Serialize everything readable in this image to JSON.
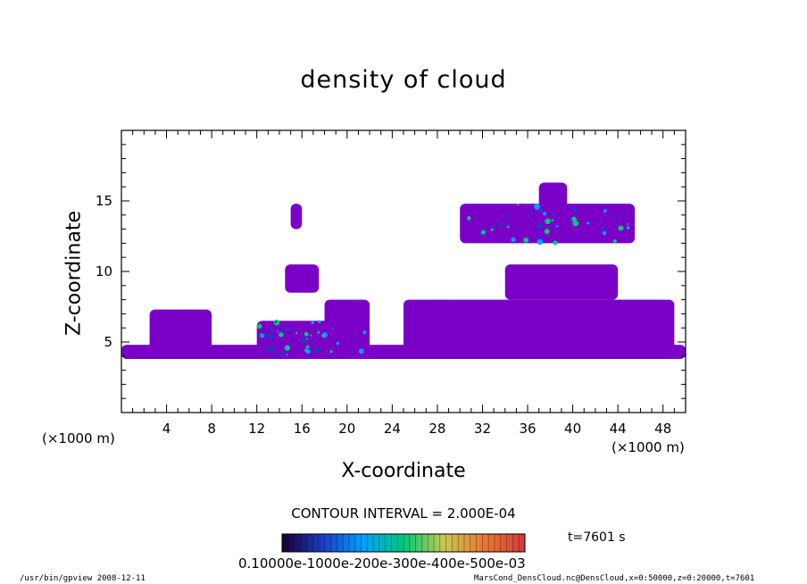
{
  "chart_data": {
    "type": "heatmap",
    "title": "density of cloud",
    "xlabel": "X-coordinate",
    "ylabel": "Z-coordinate",
    "x_unit": "(×1000 m)",
    "y_unit": "(×1000 m)",
    "xlim": [
      0,
      50
    ],
    "ylim": [
      0,
      20
    ],
    "x_ticks": [
      "4",
      "8",
      "12",
      "16",
      "20",
      "24",
      "28",
      "32",
      "36",
      "40",
      "44",
      "48"
    ],
    "y_ticks": [
      "5",
      "10",
      "15"
    ],
    "contour_interval": "CONTOUR INTERVAL = 2.000E-04",
    "time_label": "t=7601 s",
    "colorbar_labels": "0.10000e-1000e-200e-300e-400e-500e-03",
    "colorbar_colors": [
      "#1a0030",
      "#1a3cc8",
      "#00a0ff",
      "#00c878",
      "#c8c850",
      "#e87832",
      "#d23c3c"
    ],
    "fill_color": "#7a00c8",
    "regions": [
      {
        "x": [
          0,
          50
        ],
        "z": [
          3.8,
          4.8
        ],
        "level": "low"
      },
      {
        "x": [
          2.5,
          8
        ],
        "z": [
          4.5,
          7.3
        ],
        "level": "low"
      },
      {
        "x": [
          12,
          22
        ],
        "z": [
          4,
          6.5
        ],
        "level": "mid"
      },
      {
        "x": [
          14.5,
          17.5
        ],
        "z": [
          8.5,
          10.5
        ],
        "level": "low"
      },
      {
        "x": [
          15,
          16
        ],
        "z": [
          13,
          14.8
        ],
        "level": "low"
      },
      {
        "x": [
          18,
          22
        ],
        "z": [
          6,
          8
        ],
        "level": "low"
      },
      {
        "x": [
          25,
          49
        ],
        "z": [
          4,
          8
        ],
        "level": "low"
      },
      {
        "x": [
          34,
          44
        ],
        "z": [
          8,
          10.5
        ],
        "level": "low"
      },
      {
        "x": [
          30,
          45.5
        ],
        "z": [
          12,
          14.8
        ],
        "level": "mid"
      },
      {
        "x": [
          37,
          39.5
        ],
        "z": [
          14.5,
          16.3
        ],
        "level": "low"
      }
    ]
  },
  "footer": {
    "left": "/usr/bin/gpview   2008-12-11",
    "right": "MarsCond_DensCloud.nc@DensCloud,x=0:50000,z=0:20000,t=7601"
  }
}
